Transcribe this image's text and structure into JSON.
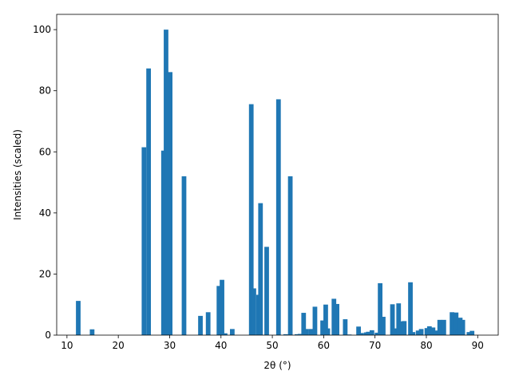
{
  "chart_data": {
    "type": "bar",
    "title": "",
    "xlabel": "2θ (°)",
    "ylabel": "Intensities (scaled)",
    "xlim": [
      8,
      94
    ],
    "ylim": [
      0,
      105
    ],
    "xticks": [
      10,
      20,
      30,
      40,
      50,
      60,
      70,
      80,
      90
    ],
    "yticks": [
      0,
      20,
      40,
      60,
      80,
      100
    ],
    "grid": false,
    "legend": "none",
    "bar_width": 0.9,
    "bar_color": "#1f77b4",
    "x": [
      12.2,
      14.9,
      25.0,
      25.9,
      28.8,
      29.3,
      30.1,
      32.8,
      36.0,
      37.5,
      39.6,
      40.2,
      40.8,
      42.2,
      45.9,
      46.4,
      47.3,
      47.7,
      48.9,
      51.2,
      52.6,
      53.5,
      54.8,
      55.4,
      56.1,
      56.6,
      57.5,
      58.3,
      59.8,
      60.4,
      60.8,
      62.0,
      62.6,
      64.2,
      65.0,
      66.8,
      67.4,
      68.3,
      68.7,
      69.4,
      70.4,
      71.0,
      71.6,
      73.4,
      73.8,
      74.6,
      75.0,
      75.7,
      76.9,
      77.4,
      78.4,
      79.0,
      80.1,
      80.6,
      81.3,
      81.8,
      82.6,
      83.4,
      85.0,
      85.8,
      86.2,
      86.6,
      87.1,
      88.3,
      88.9
    ],
    "values": [
      11.2,
      1.9,
      61.5,
      87.3,
      60.4,
      100.0,
      86.1,
      52.0,
      6.3,
      7.5,
      16.1,
      18.1,
      0.6,
      2.0,
      75.6,
      15.3,
      13.2,
      43.2,
      28.9,
      77.2,
      0.3,
      52.0,
      0.3,
      0.4,
      7.3,
      2.0,
      2.0,
      9.3,
      4.8,
      10.0,
      2.2,
      11.9,
      10.2,
      5.2,
      0.2,
      2.8,
      0.7,
      0.9,
      1.1,
      1.6,
      0.8,
      17.0,
      6.0,
      10.1,
      2.2,
      10.4,
      4.5,
      4.6,
      17.3,
      1.0,
      1.5,
      2.0,
      2.3,
      2.9,
      2.5,
      1.5,
      5.0,
      5.0,
      7.5,
      7.4,
      1.6,
      5.7,
      5.0,
      1.0,
      1.4
    ]
  }
}
